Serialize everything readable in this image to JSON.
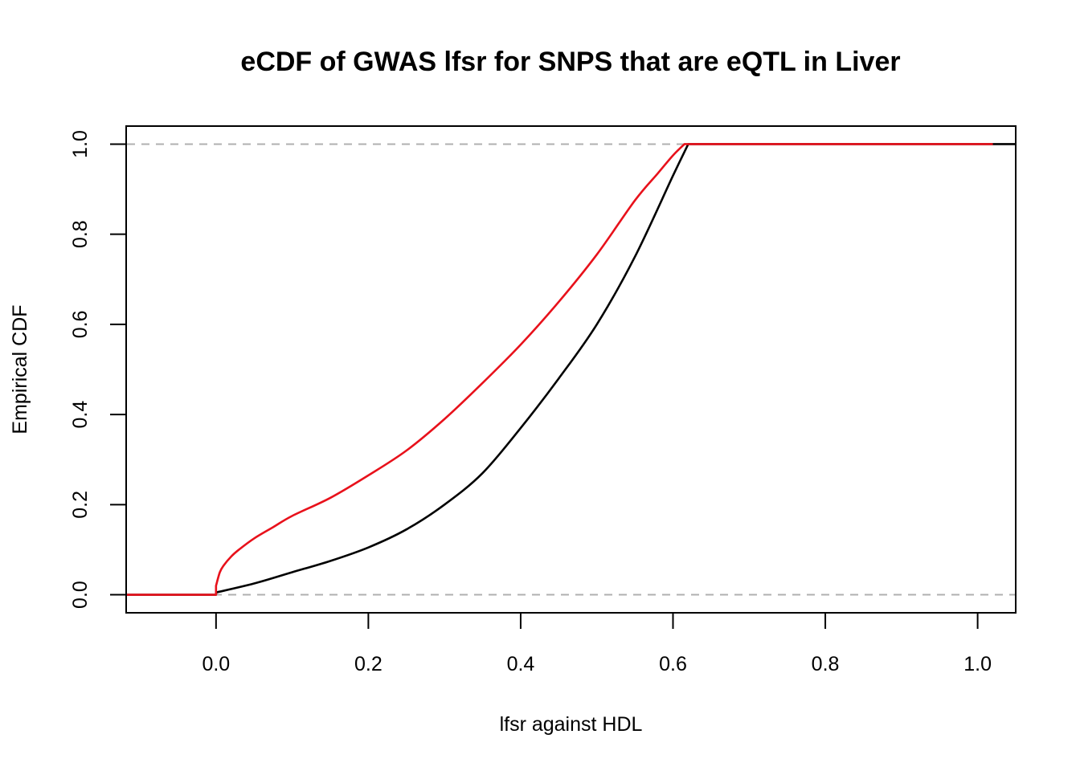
{
  "chart_data": {
    "type": "line",
    "title": "eCDF of GWAS lfsr for SNPS that are eQTL in Liver",
    "xlabel": "lfsr against HDL",
    "ylabel": "Empirical CDF",
    "xlim": [
      -0.118,
      1.05
    ],
    "ylim": [
      -0.04,
      1.04
    ],
    "xticks": [
      "0.0",
      "0.2",
      "0.4",
      "0.6",
      "0.8",
      "1.0"
    ],
    "yticks": [
      "0.0",
      "0.2",
      "0.4",
      "0.6",
      "0.8",
      "1.0"
    ],
    "reference_lines": [
      0,
      1
    ],
    "reference_color": "#b0b0b0",
    "grid": false,
    "series": [
      {
        "color": "#000000",
        "x": [
          -0.118,
          0.0,
          0.0,
          0.05,
          0.1,
          0.15,
          0.2,
          0.25,
          0.3,
          0.35,
          0.4,
          0.45,
          0.5,
          0.55,
          0.6,
          0.62,
          1.05
        ],
        "y": [
          0,
          0,
          0.005,
          0.025,
          0.05,
          0.075,
          0.105,
          0.145,
          0.2,
          0.27,
          0.37,
          0.48,
          0.6,
          0.75,
          0.93,
          1.0,
          1.0
        ]
      },
      {
        "color": "#e8111b",
        "x": [
          -0.118,
          0.0,
          0.0,
          0.005,
          0.01,
          0.02,
          0.03,
          0.05,
          0.075,
          0.1,
          0.15,
          0.2,
          0.25,
          0.3,
          0.35,
          0.4,
          0.45,
          0.5,
          0.55,
          0.58,
          0.6,
          0.615,
          1.02
        ],
        "y": [
          0,
          0,
          0.02,
          0.05,
          0.065,
          0.085,
          0.1,
          0.125,
          0.15,
          0.175,
          0.215,
          0.265,
          0.32,
          0.39,
          0.47,
          0.555,
          0.65,
          0.755,
          0.875,
          0.935,
          0.975,
          1.0,
          1.0
        ]
      }
    ]
  }
}
